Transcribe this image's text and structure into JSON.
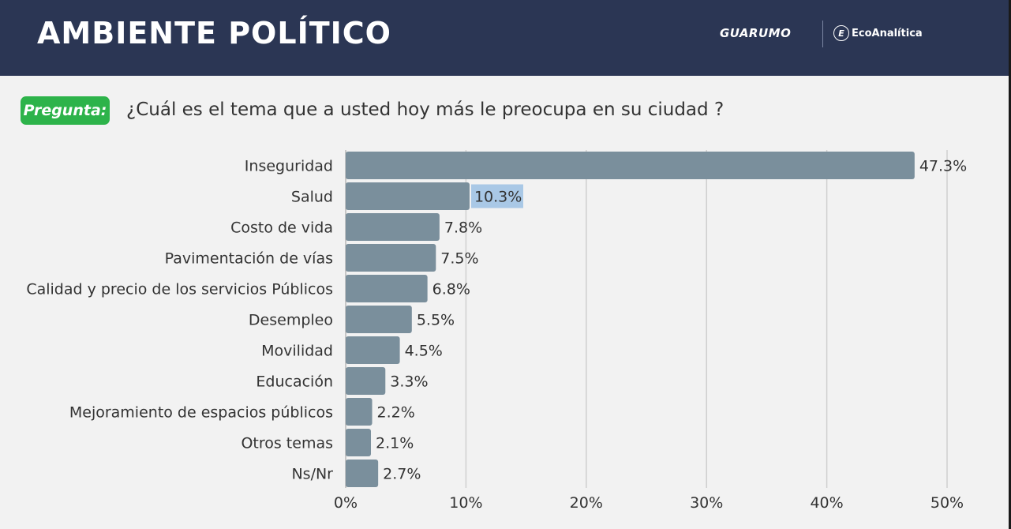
{
  "header": {
    "title": "AMBIENTE POLÍTICO",
    "logo_primary": "GUARUMO",
    "logo_secondary": "EcoAnalítica",
    "logo_secondary_mark": "E"
  },
  "question": {
    "badge": "Pregunta:",
    "text": "¿Cuál es el tema que a usted hoy más le preocupa en su ciudad ?"
  },
  "colors": {
    "header_bg": "#2b3654",
    "bar": "#7a8f9c",
    "badge": "#2db34a",
    "highlight": "#a9c8e6"
  },
  "chart_data": {
    "type": "bar",
    "orientation": "horizontal",
    "categories": [
      "Inseguridad",
      "Salud",
      "Costo de vida",
      "Pavimentación de vías",
      "Calidad y precio de los servicios Públicos",
      "Desempleo",
      "Movilidad",
      "Educación",
      "Mejoramiento de espacios públicos",
      "Otros temas",
      "Ns/Nr"
    ],
    "values": [
      47.3,
      10.3,
      7.8,
      7.5,
      6.8,
      5.5,
      4.5,
      3.3,
      2.2,
      2.1,
      2.7
    ],
    "value_labels": [
      "47.3%",
      "10.3%",
      "7.8%",
      "7.5%",
      "6.8%",
      "5.5%",
      "4.5%",
      "3.3%",
      "2.2%",
      "2.1%",
      "2.7%"
    ],
    "highlighted_label_index": 1,
    "xlim": [
      0,
      50
    ],
    "x_ticks": [
      0,
      10,
      20,
      30,
      40,
      50
    ],
    "x_tick_labels": [
      "0%",
      "10%",
      "20%",
      "30%",
      "40%",
      "50%"
    ],
    "grid": true,
    "title": "",
    "xlabel": "",
    "ylabel": ""
  }
}
